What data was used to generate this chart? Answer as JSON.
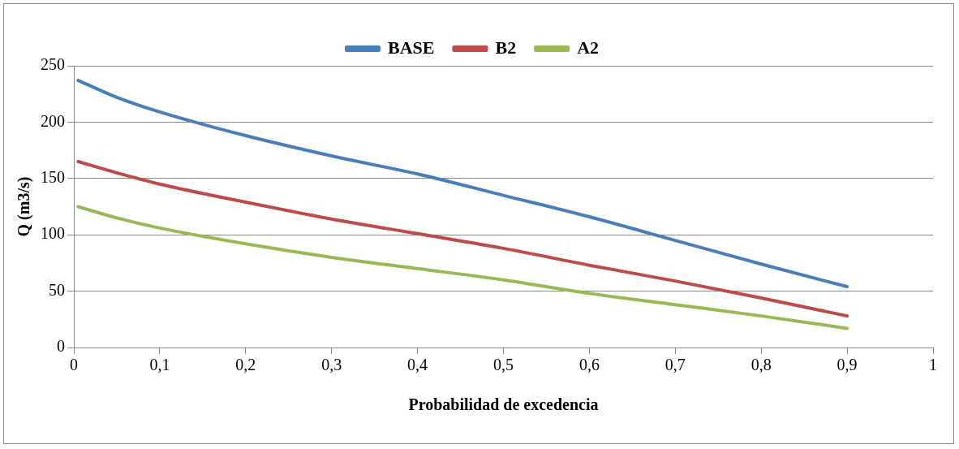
{
  "chart_data": {
    "type": "line",
    "xlabel": "Probabilidad de excedencia",
    "ylabel": "Q (m3/s)",
    "xlim": [
      0,
      1
    ],
    "xticks": [
      0,
      {
        "value": 0.1,
        "label": "0,1"
      },
      {
        "value": 0.2,
        "label": "0,2"
      },
      {
        "value": 0.3,
        "label": "0,3"
      },
      {
        "value": 0.4,
        "label": "0,4"
      },
      {
        "value": 0.5,
        "label": "0,5"
      },
      {
        "value": 0.6,
        "label": "0,6"
      },
      {
        "value": 0.7,
        "label": "0,7"
      },
      {
        "value": 0.8,
        "label": "0,8"
      },
      {
        "value": 0.9,
        "label": "0,9"
      },
      1
    ],
    "ylim": [
      0,
      250
    ],
    "yticks": [
      0,
      50,
      100,
      150,
      200,
      250
    ],
    "grid": "y",
    "legend": "top",
    "marker": "none",
    "line_style": "solid",
    "x": [
      0.005,
      0.05,
      0.1,
      0.2,
      0.3,
      0.4,
      0.5,
      0.6,
      0.7,
      0.8,
      0.9
    ],
    "series": [
      {
        "name": "BASE",
        "color": "#4a7ebb",
        "values": [
          237,
          222,
          209,
          188,
          170,
          154,
          135,
          116,
          95,
          74,
          54
        ]
      },
      {
        "name": "B2",
        "color": "#be4b48",
        "values": [
          165,
          155,
          145,
          129,
          114,
          101,
          88,
          73,
          59,
          44,
          28
        ]
      },
      {
        "name": "A2",
        "color": "#98b954",
        "values": [
          125,
          115,
          106,
          92,
          80,
          70,
          60,
          48,
          38,
          28,
          17
        ]
      }
    ]
  }
}
